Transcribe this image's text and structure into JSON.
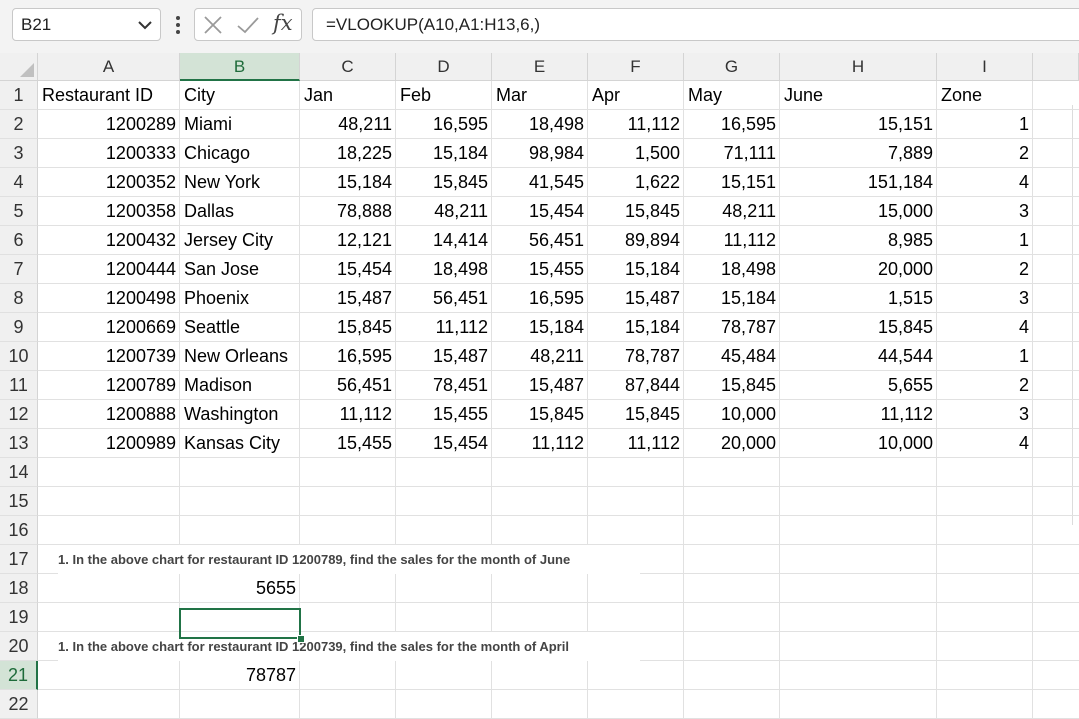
{
  "formula_bar": {
    "name_box": "B21",
    "formula": "=VLOOKUP(A10,A1:H13,6,)",
    "fx_label": "fx"
  },
  "columns": [
    "A",
    "B",
    "C",
    "D",
    "E",
    "F",
    "G",
    "H",
    "I"
  ],
  "selected_column": "B",
  "selected_row": "21",
  "row_numbers": [
    "1",
    "2",
    "3",
    "4",
    "5",
    "6",
    "7",
    "8",
    "9",
    "10",
    "11",
    "12",
    "13",
    "14",
    "15",
    "16",
    "17",
    "18",
    "19",
    "20",
    "21",
    "22"
  ],
  "headers": [
    "Restaurant ID",
    "City",
    "Jan",
    "Feb",
    "Mar",
    "Apr",
    "May",
    "June",
    "Zone"
  ],
  "rows": [
    [
      "1200289",
      "Miami",
      "48,211",
      "16,595",
      "18,498",
      "11,112",
      "16,595",
      "15,151",
      "1"
    ],
    [
      "1200333",
      "Chicago",
      "18,225",
      "15,184",
      "98,984",
      "1,500",
      "71,111",
      "7,889",
      "2"
    ],
    [
      "1200352",
      "New York",
      "15,184",
      "15,845",
      "41,545",
      "1,622",
      "15,151",
      "151,184",
      "4"
    ],
    [
      "1200358",
      "Dallas",
      "78,888",
      "48,211",
      "15,454",
      "15,845",
      "48,211",
      "15,000",
      "3"
    ],
    [
      "1200432",
      "Jersey City",
      "12,121",
      "14,414",
      "56,451",
      "89,894",
      "11,112",
      "8,985",
      "1"
    ],
    [
      "1200444",
      "San Jose",
      "15,454",
      "18,498",
      "15,455",
      "15,184",
      "18,498",
      "20,000",
      "2"
    ],
    [
      "1200498",
      "Phoenix",
      "15,487",
      "56,451",
      "16,595",
      "15,487",
      "15,184",
      "1,515",
      "3"
    ],
    [
      "1200669",
      "Seattle",
      "15,845",
      "11,112",
      "15,184",
      "15,184",
      "78,787",
      "15,845",
      "4"
    ],
    [
      "1200739",
      "New Orleans",
      "16,595",
      "15,487",
      "48,211",
      "78,787",
      "45,484",
      "44,544",
      "1"
    ],
    [
      "1200789",
      "Madison",
      "56,451",
      "78,451",
      "15,487",
      "87,844",
      "15,845",
      "5,655",
      "2"
    ],
    [
      "1200888",
      "Washington",
      "11,112",
      "15,455",
      "15,845",
      "15,845",
      "10,000",
      "11,112",
      "3"
    ],
    [
      "1200989",
      "Kansas City",
      "15,455",
      "15,454",
      "11,112",
      "11,112",
      "20,000",
      "10,000",
      "4"
    ]
  ],
  "question1": "1. In the above chart for restaurant ID 1200789, find the sales for the month of June",
  "answer1": "5655",
  "question2": "1. In the above chart for restaurant ID 1200739, find the sales for the month of April",
  "answer2": "78787",
  "icons": {
    "name_box_dropdown": "chevron-down-icon",
    "more": "more-vertical-icon",
    "cancel": "close-icon",
    "enter": "check-icon",
    "function": "fx-icon"
  },
  "colors": {
    "accent": "#217346",
    "header_bg": "#f0f0f0",
    "selected_header_bg": "#d3e3d6",
    "gridline": "#e1e1e1"
  }
}
